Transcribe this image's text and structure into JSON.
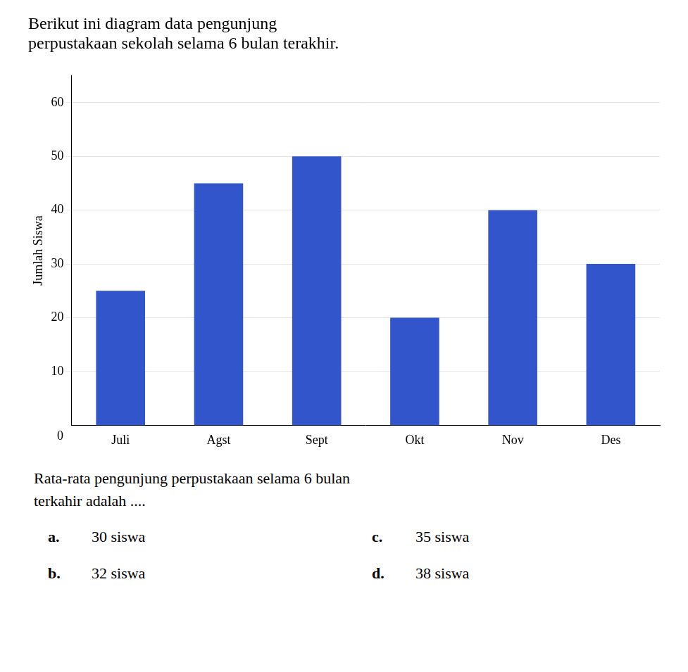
{
  "chart_data": {
    "type": "bar",
    "title": [
      "Berikut ini diagram data pengunjung",
      "perpustakaan sekolah selama 6 bulan terakhir."
    ],
    "categories": [
      "Juli",
      "Agst",
      "Sept",
      "Okt",
      "Nov",
      "Des"
    ],
    "values": [
      25,
      45,
      50,
      20,
      40,
      30
    ],
    "color": "#3355CC",
    "ylabel": "Jumlah Siswa",
    "ylim": [
      0,
      65
    ],
    "yticks": [
      10,
      20,
      30,
      40,
      50,
      60
    ],
    "grid": true,
    "annotations": [
      "0"
    ],
    "question": [
      "Rata-rata pengunjung perpustakaan selama 6 bulan",
      "terkahir adalah ...."
    ],
    "options": [
      {
        "label": "a.",
        "text": "30 siswa"
      },
      {
        "label": "b.",
        "text": "32 siswa"
      },
      {
        "label": "c.",
        "text": "35 siswa"
      },
      {
        "label": "d.",
        "text": "38 siswa"
      }
    ]
  }
}
